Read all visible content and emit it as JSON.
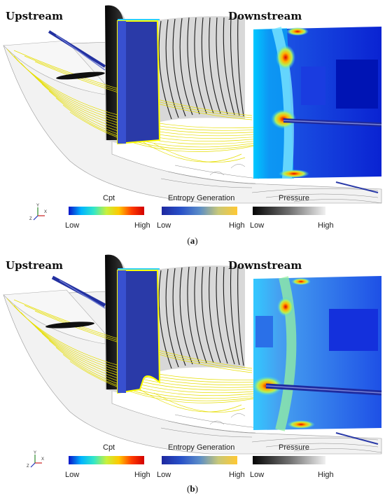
{
  "panels": [
    {
      "id": "a",
      "upstream_label": "Upstream",
      "downstream_label": "Downstream",
      "caption_letter": "a",
      "legend": [
        {
          "title": "Cpt",
          "low": "Low",
          "high": "High",
          "colors": [
            "#0a14c8",
            "#00b4ff",
            "#32e6c8",
            "#c8f03c",
            "#ffc800",
            "#ff3c00",
            "#d20000"
          ]
        },
        {
          "title": "Entropy Generation",
          "low": "Low",
          "high": "High",
          "colors": [
            "#1e28a0",
            "#2850c8",
            "#5a8cc8",
            "#c8c878",
            "#ffc832"
          ]
        },
        {
          "title": "Pressure",
          "low": "Low",
          "high": "High",
          "colors": [
            "#050505",
            "#6e6e6e",
            "#f0f0f0"
          ]
        }
      ],
      "axis_labels": {
        "y": "Y",
        "z": "Z",
        "x": "X"
      }
    },
    {
      "id": "b",
      "upstream_label": "Upstream",
      "downstream_label": "Downstream",
      "caption_letter": "b",
      "legend": [
        {
          "title": "Cpt",
          "low": "Low",
          "high": "High",
          "colors": [
            "#0a14c8",
            "#00b4ff",
            "#32e6c8",
            "#c8f03c",
            "#ffc800",
            "#ff3c00",
            "#d20000"
          ]
        },
        {
          "title": "Entropy Generation",
          "low": "Low",
          "high": "High",
          "colors": [
            "#1e28a0",
            "#2850c8",
            "#5a8cc8",
            "#c8c878",
            "#ffc832"
          ]
        },
        {
          "title": "Pressure",
          "low": "Low",
          "high": "High",
          "colors": [
            "#050505",
            "#6e6e6e",
            "#f0f0f0"
          ]
        }
      ],
      "axis_labels": {
        "y": "Y",
        "z": "Z",
        "x": "X"
      }
    }
  ],
  "colors": {
    "blade_blue": "#2a3aa8",
    "streamline_yellow": "#e8e000",
    "vortex_blue": "#1e2a9e",
    "contour_gray": "#777777"
  }
}
